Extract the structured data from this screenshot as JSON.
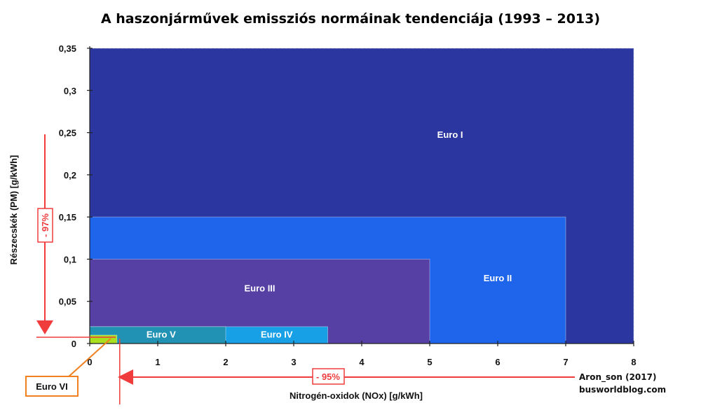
{
  "chart_data": {
    "type": "area",
    "title": "A haszonjárművek emissziós normáinak tendenciája (1993 – 2013)",
    "xlabel": "Nitrogén-oxidok (NOx) [g/kWh]",
    "ylabel": "Részecskék (PM) [g/kWh]",
    "xlim": [
      0,
      8
    ],
    "ylim": [
      0,
      0.35
    ],
    "x_ticks": [
      {
        "value": 0,
        "label": "0"
      },
      {
        "value": 1,
        "label": "1"
      },
      {
        "value": 2,
        "label": "2"
      },
      {
        "value": 3,
        "label": "3"
      },
      {
        "value": 4,
        "label": "4"
      },
      {
        "value": 5,
        "label": "5"
      },
      {
        "value": 6,
        "label": "6"
      },
      {
        "value": 7,
        "label": "7"
      },
      {
        "value": 8,
        "label": "8"
      }
    ],
    "y_ticks": [
      {
        "value": 0,
        "label": "0"
      },
      {
        "value": 0.05,
        "label": "0,05"
      },
      {
        "value": 0.1,
        "label": "0,1"
      },
      {
        "value": 0.15,
        "label": "0,15"
      },
      {
        "value": 0.2,
        "label": "0,2"
      },
      {
        "value": 0.25,
        "label": "0,25"
      },
      {
        "value": 0.3,
        "label": "0,3"
      },
      {
        "value": 0.35,
        "label": "0,35"
      }
    ],
    "series": [
      {
        "name": "Euro I",
        "nox": 8.0,
        "pm": 0.36,
        "color": "#2b36a0"
      },
      {
        "name": "Euro II",
        "nox": 7.0,
        "pm": 0.15,
        "color": "#1f65ec"
      },
      {
        "name": "Euro III",
        "nox": 5.0,
        "pm": 0.1,
        "color": "#5640a4"
      },
      {
        "name": "Euro IV",
        "nox": 3.5,
        "pm": 0.02,
        "color": "#17a0e6"
      },
      {
        "name": "Euro V",
        "nox": 2.0,
        "pm": 0.02,
        "color": "#2292b4"
      },
      {
        "name": "Euro VI",
        "nox": 0.4,
        "pm": 0.01,
        "color": "#a8e020"
      }
    ],
    "annotations": [
      {
        "text": "- 97%",
        "axis": "PM"
      },
      {
        "text": "- 95%",
        "axis": "NOx"
      }
    ]
  },
  "credit": {
    "line1": "Aron_son (2017)",
    "line2": "busworldblog.com"
  },
  "colors": {
    "annotation": "#f03c3c",
    "euro6_box": "#f08020",
    "grid": "#cccccc"
  }
}
